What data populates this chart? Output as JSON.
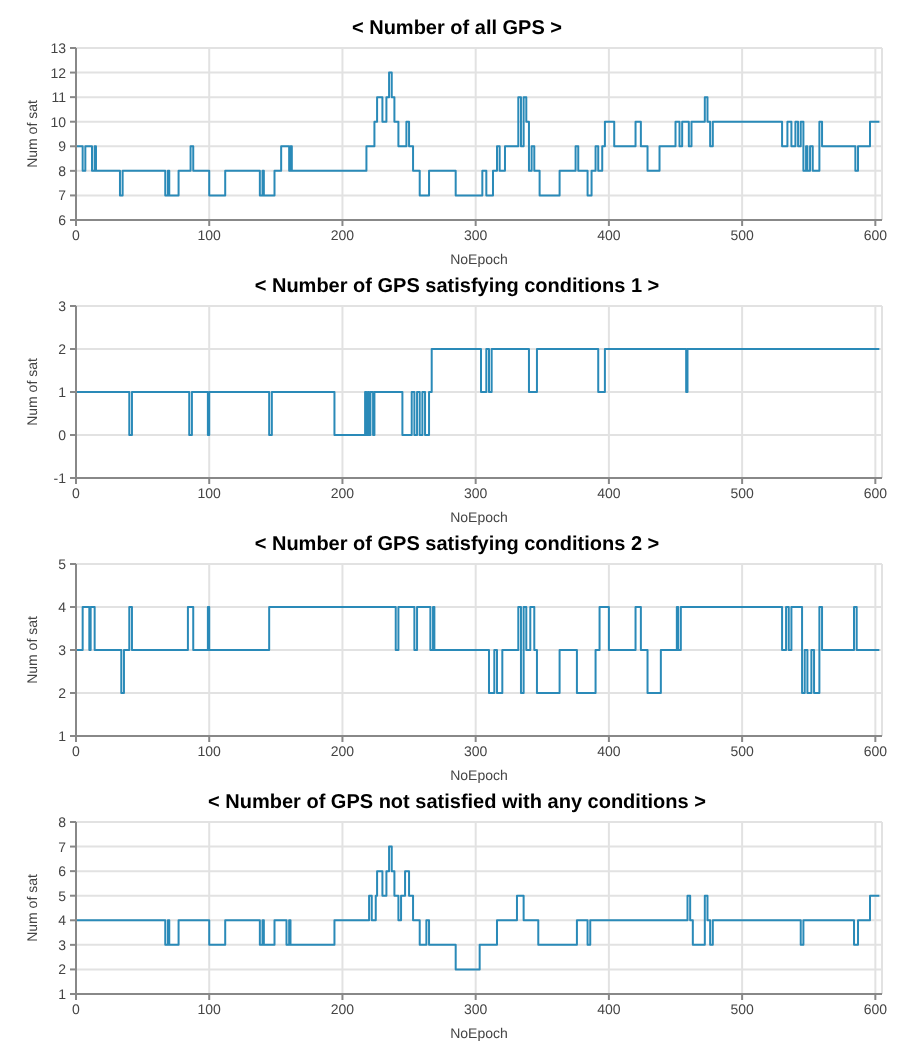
{
  "chart_data": [
    {
      "type": "step",
      "title": "< Number of all GPS >",
      "xlabel": "NoEpoch",
      "ylabel": "Num of sat",
      "color": "#2a8ab8",
      "grid": true,
      "xlim": [
        0,
        605
      ],
      "xticks": [
        0,
        100,
        200,
        300,
        400,
        500,
        600
      ],
      "ylim": [
        6,
        13
      ],
      "yticks": [
        6,
        7,
        8,
        9,
        10,
        11,
        12,
        13
      ],
      "x": [
        0,
        5,
        7,
        12,
        14,
        15,
        33,
        35,
        67,
        69,
        70,
        77,
        86,
        88,
        100,
        112,
        138,
        140,
        141,
        149,
        154,
        160,
        161,
        162,
        218,
        224,
        226,
        230,
        233,
        235,
        237,
        239,
        242,
        248,
        250,
        253,
        258,
        265,
        285,
        305,
        308,
        313,
        316,
        318,
        322,
        332,
        334,
        336,
        338,
        340,
        342,
        344,
        348,
        363,
        375,
        377,
        384,
        387,
        390,
        392,
        395,
        397,
        404,
        420,
        424,
        429,
        438,
        450,
        453,
        455,
        460,
        462,
        472,
        474,
        476,
        478,
        530,
        534,
        537,
        540,
        542,
        544,
        546,
        548,
        549,
        551,
        553,
        558,
        560,
        585,
        587,
        596,
        603
      ],
      "values": [
        9,
        8,
        9,
        8,
        9,
        8,
        7,
        8,
        7,
        8,
        7,
        8,
        9,
        8,
        7,
        8,
        7,
        8,
        7,
        8,
        9,
        8,
        9,
        8,
        9,
        10,
        11,
        10,
        11,
        12,
        11,
        10,
        9,
        10,
        9,
        8,
        7,
        8,
        7,
        8,
        7,
        8,
        9,
        8,
        9,
        11,
        9,
        11,
        10,
        8,
        9,
        8,
        7,
        8,
        9,
        8,
        7,
        8,
        9,
        8,
        9,
        10,
        9,
        10,
        9,
        8,
        9,
        10,
        9,
        10,
        9,
        10,
        11,
        10,
        9,
        10,
        9,
        10,
        9,
        10,
        9,
        10,
        8,
        9,
        8,
        9,
        8,
        10,
        9,
        8,
        9,
        10,
        10
      ]
    },
    {
      "type": "step",
      "title": "< Number of GPS satisfying conditions 1 >",
      "xlabel": "NoEpoch",
      "ylabel": "Num of sat",
      "color": "#2a8ab8",
      "grid": true,
      "xlim": [
        0,
        605
      ],
      "xticks": [
        0,
        100,
        200,
        300,
        400,
        500,
        600
      ],
      "ylim": [
        -1,
        3
      ],
      "yticks": [
        -1,
        0,
        1,
        2,
        3
      ],
      "x": [
        0,
        40,
        42,
        85,
        87,
        99,
        100,
        145,
        147,
        194,
        217,
        218,
        219,
        220,
        221,
        223,
        224,
        245,
        252,
        254,
        256,
        258,
        260,
        262,
        265,
        267,
        304,
        308,
        310,
        312,
        340,
        346,
        392,
        397,
        458,
        459,
        603
      ],
      "values": [
        1,
        0,
        1,
        0,
        1,
        0,
        1,
        0,
        1,
        0,
        1,
        0,
        1,
        0,
        1,
        0,
        1,
        0,
        1,
        0,
        1,
        0,
        1,
        0,
        1,
        2,
        1,
        2,
        1,
        2,
        1,
        2,
        1,
        2,
        1,
        2,
        2
      ]
    },
    {
      "type": "step",
      "title": "< Number of GPS satisfying conditions 2 >",
      "xlabel": "NoEpoch",
      "ylabel": "Num of sat",
      "color": "#2a8ab8",
      "grid": true,
      "xlim": [
        0,
        605
      ],
      "xticks": [
        0,
        100,
        200,
        300,
        400,
        500,
        600
      ],
      "ylim": [
        1,
        5
      ],
      "yticks": [
        1,
        2,
        3,
        4,
        5
      ],
      "x": [
        0,
        5,
        10,
        11,
        14,
        34,
        36,
        40,
        42,
        84,
        88,
        99,
        100,
        145,
        240,
        242,
        254,
        256,
        266,
        268,
        269,
        310,
        314,
        316,
        320,
        332,
        334,
        336,
        338,
        341,
        344,
        346,
        363,
        376,
        390,
        393,
        400,
        420,
        424,
        429,
        439,
        451,
        452,
        454,
        530,
        533,
        535,
        537,
        545,
        547,
        549,
        552,
        554,
        558,
        560,
        584,
        586,
        603
      ],
      "values": [
        3,
        4,
        3,
        4,
        3,
        2,
        3,
        4,
        3,
        4,
        3,
        4,
        3,
        4,
        3,
        4,
        3,
        4,
        3,
        4,
        3,
        2,
        3,
        2,
        3,
        4,
        2,
        4,
        3,
        4,
        3,
        2,
        3,
        2,
        3,
        4,
        3,
        4,
        3,
        2,
        3,
        4,
        3,
        4,
        3,
        4,
        3,
        4,
        2,
        3,
        2,
        3,
        2,
        4,
        3,
        4,
        3,
        3
      ]
    },
    {
      "type": "step",
      "title": "< Number of GPS not satisfied with any conditions >",
      "xlabel": "NoEpoch",
      "ylabel": "Num of sat",
      "color": "#2a8ab8",
      "grid": true,
      "xlim": [
        0,
        605
      ],
      "xticks": [
        0,
        100,
        200,
        300,
        400,
        500,
        600
      ],
      "ylim": [
        1,
        8
      ],
      "yticks": [
        1,
        2,
        3,
        4,
        5,
        6,
        7,
        8
      ],
      "x": [
        0,
        67,
        69,
        70,
        77,
        100,
        112,
        138,
        140,
        141,
        149,
        158,
        160,
        161,
        194,
        220,
        222,
        225,
        226,
        230,
        233,
        235,
        237,
        239,
        242,
        244,
        247,
        250,
        253,
        258,
        263,
        265,
        285,
        303,
        316,
        331,
        336,
        347,
        376,
        384,
        386,
        459,
        461,
        463,
        472,
        474,
        476,
        478,
        544,
        546,
        584,
        587,
        596,
        603
      ],
      "values": [
        4,
        3,
        4,
        3,
        4,
        3,
        4,
        3,
        4,
        3,
        4,
        3,
        4,
        3,
        4,
        5,
        4,
        5,
        6,
        5,
        6,
        7,
        6,
        5,
        4,
        5,
        6,
        5,
        4,
        3,
        4,
        3,
        2,
        3,
        4,
        5,
        4,
        3,
        4,
        3,
        4,
        5,
        4,
        3,
        5,
        4,
        3,
        4,
        3,
        4,
        3,
        4,
        5,
        5
      ]
    }
  ]
}
